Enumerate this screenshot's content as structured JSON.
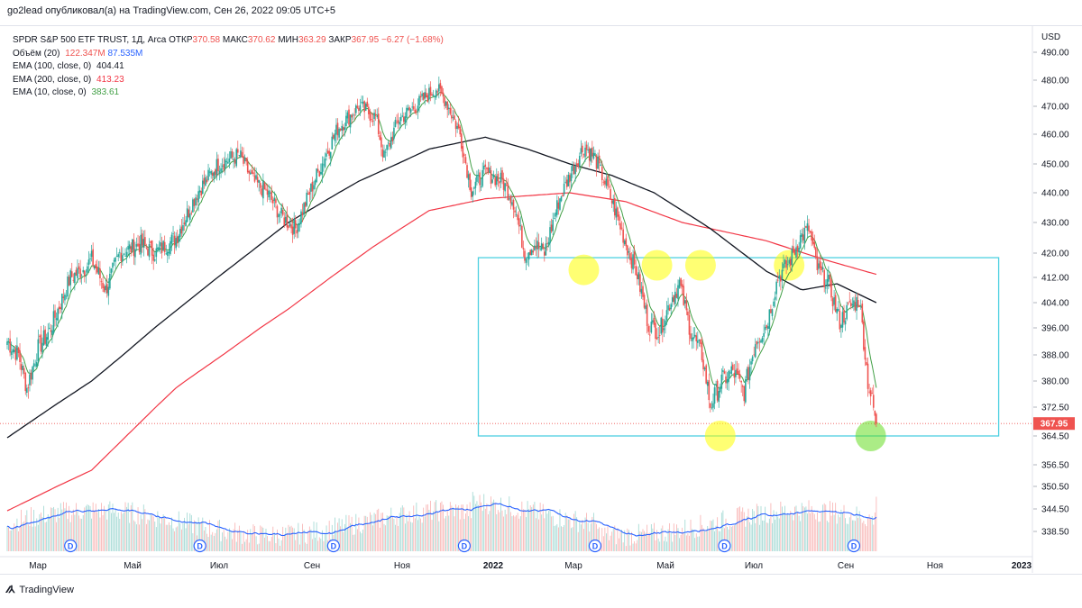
{
  "header": {
    "publisher_line": "go2lead опубликовал(а) на TradingView.com, Сен 26, 2022 09:05 UTC+5"
  },
  "legend": {
    "symbol": "SPDR S&P 500 ETF TRUST, 1Д, Arca",
    "open_label": "ОТКР",
    "open_value": "370.58",
    "high_label": "МАКС",
    "high_value": "370.62",
    "low_label": "МИН",
    "low_value": "363.29",
    "close_label": "ЗАКР",
    "close_value": "367.95",
    "change": "−6.27 (−1.68%)",
    "volume_label": "Объём (20)",
    "volume_value": "122.347M",
    "volume_ma": "87.535M",
    "ema100_label": "EMA (100, close, 0)",
    "ema100_value": "404.41",
    "ema200_label": "EMA (200, close, 0)",
    "ema200_value": "413.23",
    "ema10_label": "EMA (10, close, 0)",
    "ema10_value": "383.61"
  },
  "colors": {
    "up": "#26a69a",
    "down": "#ef5350",
    "ema100": "#131722",
    "ema200": "#f23645",
    "ema10": "#43a047",
    "volume_ma": "#2962ff",
    "box": "#4dd0e1",
    "highlight_yellow": "#ffff00",
    "highlight_green": "#66dd22",
    "price_tag": "#ef5350"
  },
  "footer": {
    "brand": "TradingView"
  },
  "chart_data": {
    "type": "candlestick",
    "currency": "USD",
    "last_price_label": "367.95",
    "y_ticks": [
      "490.00",
      "480.00",
      "470.00",
      "460.00",
      "450.00",
      "440.00",
      "430.00",
      "420.00",
      "412.00",
      "404.00",
      "396.00",
      "388.00",
      "380.00",
      "372.50",
      "364.50",
      "356.50",
      "350.50",
      "344.50",
      "338.50"
    ],
    "x_ticks": [
      "Мар",
      "Май",
      "Июл",
      "Сен",
      "Ноя",
      "2022",
      "Мар",
      "Май",
      "Июл",
      "Сен",
      "Ноя",
      "2023"
    ],
    "anchors": [
      {
        "t": 0,
        "v": 392
      },
      {
        "t": 8,
        "v": 388
      },
      {
        "t": 14,
        "v": 378
      },
      {
        "t": 22,
        "v": 390
      },
      {
        "t": 30,
        "v": 395
      },
      {
        "t": 45,
        "v": 412
      },
      {
        "t": 55,
        "v": 415
      },
      {
        "t": 60,
        "v": 418
      },
      {
        "t": 70,
        "v": 408
      },
      {
        "t": 80,
        "v": 420
      },
      {
        "t": 95,
        "v": 423
      },
      {
        "t": 105,
        "v": 420
      },
      {
        "t": 120,
        "v": 425
      },
      {
        "t": 135,
        "v": 440
      },
      {
        "t": 150,
        "v": 450
      },
      {
        "t": 165,
        "v": 453
      },
      {
        "t": 175,
        "v": 444
      },
      {
        "t": 185,
        "v": 440
      },
      {
        "t": 195,
        "v": 432
      },
      {
        "t": 205,
        "v": 428
      },
      {
        "t": 220,
        "v": 446
      },
      {
        "t": 235,
        "v": 462
      },
      {
        "t": 250,
        "v": 470
      },
      {
        "t": 262,
        "v": 466
      },
      {
        "t": 268,
        "v": 452
      },
      {
        "t": 278,
        "v": 465
      },
      {
        "t": 290,
        "v": 470
      },
      {
        "t": 305,
        "v": 477
      },
      {
        "t": 312,
        "v": 472
      },
      {
        "t": 322,
        "v": 460
      },
      {
        "t": 330,
        "v": 441
      },
      {
        "t": 340,
        "v": 447
      },
      {
        "t": 352,
        "v": 444
      },
      {
        "t": 360,
        "v": 437
      },
      {
        "t": 368,
        "v": 420
      },
      {
        "t": 375,
        "v": 423
      },
      {
        "t": 382,
        "v": 420
      },
      {
        "t": 392,
        "v": 437
      },
      {
        "t": 400,
        "v": 446
      },
      {
        "t": 410,
        "v": 456
      },
      {
        "t": 418,
        "v": 452
      },
      {
        "t": 428,
        "v": 440
      },
      {
        "t": 440,
        "v": 423
      },
      {
        "t": 448,
        "v": 413
      },
      {
        "t": 456,
        "v": 397
      },
      {
        "t": 464,
        "v": 395
      },
      {
        "t": 472,
        "v": 405
      },
      {
        "t": 478,
        "v": 410
      },
      {
        "t": 486,
        "v": 395
      },
      {
        "t": 494,
        "v": 388
      },
      {
        "t": 500,
        "v": 373
      },
      {
        "t": 508,
        "v": 380
      },
      {
        "t": 516,
        "v": 383
      },
      {
        "t": 524,
        "v": 377
      },
      {
        "t": 532,
        "v": 392
      },
      {
        "t": 540,
        "v": 397
      },
      {
        "t": 548,
        "v": 412
      },
      {
        "t": 556,
        "v": 417
      },
      {
        "t": 564,
        "v": 425
      },
      {
        "t": 570,
        "v": 428
      },
      {
        "t": 576,
        "v": 415
      },
      {
        "t": 584,
        "v": 410
      },
      {
        "t": 592,
        "v": 398
      },
      {
        "t": 600,
        "v": 403
      },
      {
        "t": 606,
        "v": 405
      },
      {
        "t": 612,
        "v": 380
      },
      {
        "t": 618,
        "v": 368
      }
    ],
    "n_days": 619,
    "ema200_anchors": [
      {
        "t": 0,
        "v": 344
      },
      {
        "t": 60,
        "v": 355
      },
      {
        "t": 120,
        "v": 378
      },
      {
        "t": 200,
        "v": 402
      },
      {
        "t": 260,
        "v": 422
      },
      {
        "t": 300,
        "v": 434
      },
      {
        "t": 340,
        "v": 438
      },
      {
        "t": 400,
        "v": 440
      },
      {
        "t": 440,
        "v": 437
      },
      {
        "t": 480,
        "v": 430
      },
      {
        "t": 540,
        "v": 424
      },
      {
        "t": 580,
        "v": 418
      },
      {
        "t": 618,
        "v": 413
      }
    ],
    "ema100_anchors": [
      {
        "t": 0,
        "v": 364
      },
      {
        "t": 60,
        "v": 380
      },
      {
        "t": 130,
        "v": 405
      },
      {
        "t": 200,
        "v": 430
      },
      {
        "t": 250,
        "v": 444
      },
      {
        "t": 300,
        "v": 455
      },
      {
        "t": 340,
        "v": 459
      },
      {
        "t": 370,
        "v": 455
      },
      {
        "t": 400,
        "v": 450
      },
      {
        "t": 430,
        "v": 446
      },
      {
        "t": 460,
        "v": 440
      },
      {
        "t": 500,
        "v": 428
      },
      {
        "t": 540,
        "v": 414
      },
      {
        "t": 565,
        "v": 408
      },
      {
        "t": 590,
        "v": 410
      },
      {
        "t": 618,
        "v": 404
      }
    ],
    "ema10_anchors": [
      {
        "t": 0,
        "v": 390
      },
      {
        "t": 618,
        "v": 383.6
      }
    ],
    "box": {
      "t_start": 335,
      "t_end": 705,
      "v_top": 418.5,
      "v_bottom": 364.5
    },
    "last_close": 367.95,
    "highlights": [
      {
        "t": 410,
        "v": 414.5,
        "color": "yellow"
      },
      {
        "t": 462,
        "v": 416,
        "color": "yellow"
      },
      {
        "t": 493,
        "v": 416,
        "color": "yellow"
      },
      {
        "t": 556,
        "v": 416,
        "color": "yellow"
      },
      {
        "t": 507,
        "v": 364.5,
        "color": "yellow"
      },
      {
        "t": 614,
        "v": 364.5,
        "color": "green"
      }
    ],
    "dividend_markers": [
      45,
      137,
      232,
      325,
      418,
      510,
      602
    ],
    "dividend_label": "D"
  }
}
